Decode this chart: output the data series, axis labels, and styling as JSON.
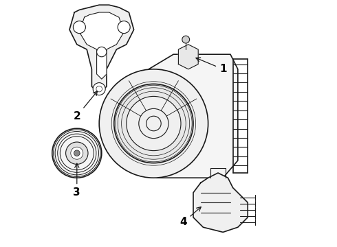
{
  "title": "",
  "bg_color": "#ffffff",
  "line_color": "#1a1a1a",
  "label_color": "#000000",
  "labels": [
    "1",
    "2",
    "3",
    "4"
  ],
  "figsize": [
    4.9,
    3.6
  ],
  "dpi": 100
}
